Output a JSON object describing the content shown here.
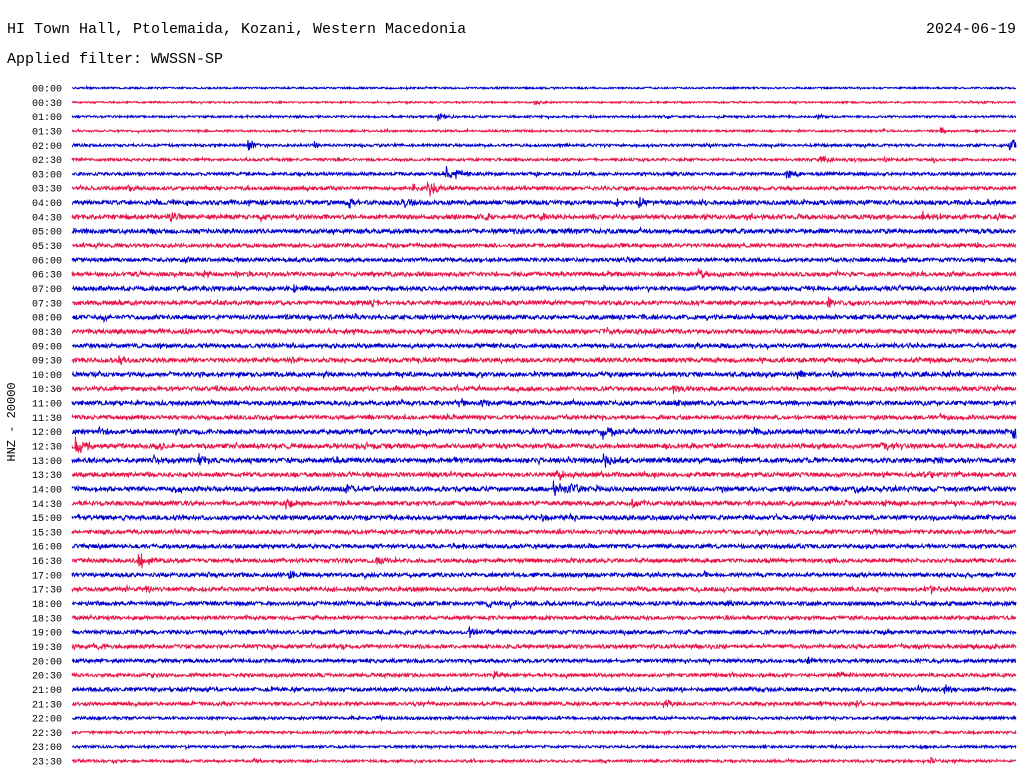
{
  "chart_data": {
    "type": "line",
    "title": "HI Town Hall, Ptolemaida, Kozani, Western Macedonia",
    "date": "2024-06-19",
    "subtitle": "Applied filter: WWSSN-SP",
    "ylabel": "HNZ - 20000",
    "colors": [
      "#0000cc",
      "#e8174a"
    ],
    "row_minutes": 30,
    "rows": [
      {
        "time": "00:00",
        "noise": 1.0,
        "events": []
      },
      {
        "time": "00:30",
        "noise": 1.0,
        "events": [
          [
            14.7,
            3
          ]
        ]
      },
      {
        "time": "01:00",
        "noise": 1.2,
        "events": [
          [
            11.6,
            5
          ],
          [
            18.8,
            3
          ],
          [
            23.7,
            3
          ]
        ]
      },
      {
        "time": "01:30",
        "noise": 1.2,
        "events": [
          [
            27.6,
            4
          ]
        ]
      },
      {
        "time": "02:00",
        "noise": 1.5,
        "events": [
          [
            5.6,
            6
          ],
          [
            7.7,
            3
          ],
          [
            29.8,
            8
          ]
        ]
      },
      {
        "time": "02:30",
        "noise": 1.5,
        "events": [
          [
            23.8,
            5
          ],
          [
            25.8,
            3
          ],
          [
            27.4,
            3
          ]
        ]
      },
      {
        "time": "03:00",
        "noise": 1.8,
        "events": [
          [
            11.9,
            10
          ],
          [
            22.7,
            6
          ]
        ]
      },
      {
        "time": "03:30",
        "noise": 2.0,
        "events": [
          [
            1.8,
            3
          ],
          [
            10.8,
            5
          ],
          [
            11.3,
            9
          ]
        ]
      },
      {
        "time": "04:00",
        "noise": 2.5,
        "events": [
          [
            8.8,
            5
          ],
          [
            10.5,
            6
          ],
          [
            17.3,
            4
          ],
          [
            18.0,
            5
          ],
          [
            21.7,
            3
          ]
        ]
      },
      {
        "time": "04:30",
        "noise": 2.5,
        "events": [
          [
            1.7,
            3
          ],
          [
            3.1,
            6
          ],
          [
            6.0,
            5
          ],
          [
            13.1,
            5
          ],
          [
            14.9,
            4
          ],
          [
            21.4,
            5
          ],
          [
            27.0,
            5
          ]
        ]
      },
      {
        "time": "05:00",
        "noise": 2.5,
        "events": [
          [
            2.4,
            3
          ],
          [
            10.7,
            3
          ],
          [
            14.0,
            4
          ]
        ]
      },
      {
        "time": "05:30",
        "noise": 2.2,
        "events": [
          [
            9.9,
            3
          ]
        ]
      },
      {
        "time": "06:00",
        "noise": 2.2,
        "events": [
          [
            3.6,
            3
          ]
        ]
      },
      {
        "time": "06:30",
        "noise": 2.4,
        "events": [
          [
            4.2,
            3
          ],
          [
            19.9,
            6
          ]
        ]
      },
      {
        "time": "07:00",
        "noise": 2.5,
        "events": [
          [
            7.0,
            5
          ]
        ]
      },
      {
        "time": "07:30",
        "noise": 2.5,
        "events": [
          [
            9.5,
            5
          ],
          [
            24.0,
            5
          ]
        ]
      },
      {
        "time": "08:00",
        "noise": 2.5,
        "events": [
          [
            1.0,
            5
          ]
        ]
      },
      {
        "time": "08:30",
        "noise": 2.5,
        "events": [
          [
            17.0,
            3
          ],
          [
            18.0,
            3
          ]
        ]
      },
      {
        "time": "09:00",
        "noise": 2.3,
        "events": []
      },
      {
        "time": "09:30",
        "noise": 2.5,
        "events": [
          [
            1.5,
            4
          ],
          [
            7.0,
            3
          ]
        ]
      },
      {
        "time": "10:00",
        "noise": 2.5,
        "events": [
          [
            8.0,
            3
          ],
          [
            23.0,
            5
          ],
          [
            24.1,
            3
          ],
          [
            28.2,
            3
          ]
        ]
      },
      {
        "time": "10:30",
        "noise": 2.4,
        "events": [
          [
            12.2,
            3
          ],
          [
            19.1,
            6
          ]
        ]
      },
      {
        "time": "11:00",
        "noise": 2.5,
        "events": [
          [
            10.4,
            4
          ],
          [
            12.3,
            5
          ],
          [
            12.9,
            4
          ],
          [
            19.2,
            4
          ]
        ]
      },
      {
        "time": "11:30",
        "noise": 2.3,
        "events": [
          [
            27.6,
            3
          ]
        ]
      },
      {
        "time": "12:00",
        "noise": 2.7,
        "events": [
          [
            0.8,
            5
          ],
          [
            3.3,
            5
          ],
          [
            8.8,
            4
          ],
          [
            10.7,
            4
          ],
          [
            16.8,
            9
          ],
          [
            21.7,
            4
          ],
          [
            29.9,
            8
          ]
        ]
      },
      {
        "time": "12:30",
        "noise": 2.6,
        "events": [
          [
            0.1,
            9
          ],
          [
            2.6,
            4
          ],
          [
            9.3,
            3
          ],
          [
            25.7,
            6
          ]
        ]
      },
      {
        "time": "13:00",
        "noise": 2.7,
        "events": [
          [
            2.6,
            6
          ],
          [
            4.0,
            7
          ],
          [
            16.9,
            8
          ],
          [
            23.8,
            4
          ],
          [
            27.3,
            6
          ]
        ]
      },
      {
        "time": "13:30",
        "noise": 2.5,
        "events": [
          [
            11.1,
            4
          ],
          [
            15.4,
            6
          ],
          [
            27.1,
            5
          ]
        ]
      },
      {
        "time": "14:00",
        "noise": 2.7,
        "events": [
          [
            3.3,
            5
          ],
          [
            8.7,
            6
          ],
          [
            15.3,
            9
          ],
          [
            15.8,
            8
          ],
          [
            24.9,
            4
          ]
        ]
      },
      {
        "time": "14:30",
        "noise": 2.5,
        "events": [
          [
            6.8,
            6
          ],
          [
            17.8,
            5
          ],
          [
            25.8,
            3
          ]
        ]
      },
      {
        "time": "15:00",
        "noise": 2.5,
        "events": [
          [
            10.0,
            3
          ],
          [
            14.9,
            4
          ],
          [
            15.7,
            3
          ],
          [
            23.4,
            4
          ]
        ]
      },
      {
        "time": "15:30",
        "noise": 2.3,
        "events": [
          [
            21.8,
            4
          ]
        ]
      },
      {
        "time": "16:00",
        "noise": 2.3,
        "events": []
      },
      {
        "time": "16:30",
        "noise": 2.3,
        "events": [
          [
            2.1,
            9
          ],
          [
            9.7,
            5
          ]
        ]
      },
      {
        "time": "17:00",
        "noise": 2.3,
        "events": [
          [
            6.9,
            5
          ],
          [
            20.1,
            3
          ]
        ]
      },
      {
        "time": "17:30",
        "noise": 2.3,
        "events": [
          [
            1.7,
            4
          ],
          [
            2.3,
            4
          ],
          [
            27.3,
            5
          ]
        ]
      },
      {
        "time": "18:00",
        "noise": 2.3,
        "events": [
          [
            13.2,
            5
          ],
          [
            13.9,
            5
          ],
          [
            20.8,
            3
          ]
        ]
      },
      {
        "time": "18:30",
        "noise": 2.1,
        "events": []
      },
      {
        "time": "19:00",
        "noise": 2.2,
        "events": [
          [
            12.6,
            6
          ],
          [
            14.7,
            3
          ]
        ]
      },
      {
        "time": "19:30",
        "noise": 2.2,
        "events": [
          [
            1.0,
            3
          ],
          [
            29.2,
            3
          ]
        ]
      },
      {
        "time": "20:00",
        "noise": 2.0,
        "events": [
          [
            23.4,
            5
          ]
        ]
      },
      {
        "time": "20:30",
        "noise": 2.0,
        "events": [
          [
            13.4,
            6
          ],
          [
            24.3,
            5
          ]
        ]
      },
      {
        "time": "21:00",
        "noise": 2.2,
        "events": [
          [
            26.9,
            4
          ],
          [
            27.7,
            6
          ]
        ]
      },
      {
        "time": "21:30",
        "noise": 2.0,
        "events": [
          [
            18.8,
            5
          ],
          [
            24.9,
            4
          ]
        ]
      },
      {
        "time": "22:00",
        "noise": 1.6,
        "events": [
          [
            8.9,
            3
          ],
          [
            9.7,
            3
          ]
        ]
      },
      {
        "time": "22:30",
        "noise": 1.5,
        "events": []
      },
      {
        "time": "23:00",
        "noise": 1.4,
        "events": []
      },
      {
        "time": "23:30",
        "noise": 1.5,
        "events": [
          [
            5.8,
            3
          ],
          [
            27.3,
            4
          ]
        ]
      }
    ]
  }
}
